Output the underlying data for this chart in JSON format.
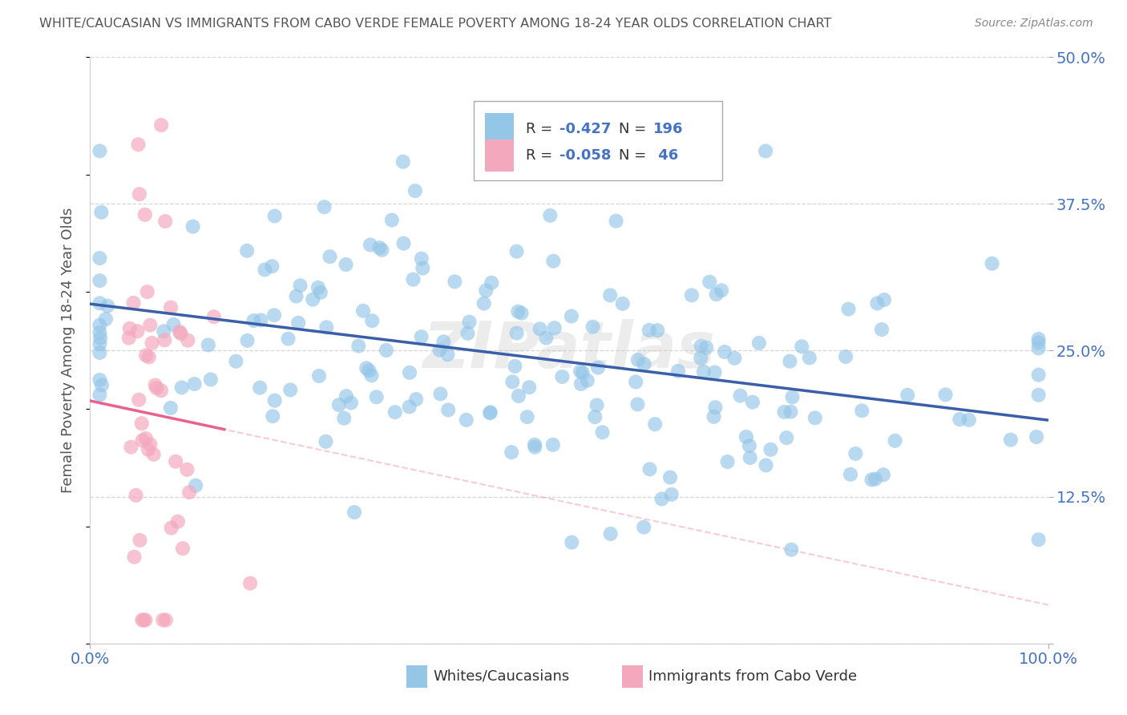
{
  "title": "WHITE/CAUCASIAN VS IMMIGRANTS FROM CABO VERDE FEMALE POVERTY AMONG 18-24 YEAR OLDS CORRELATION CHART",
  "source": "Source: ZipAtlas.com",
  "ylabel": "Female Poverty Among 18-24 Year Olds",
  "xlim": [
    0,
    1
  ],
  "ylim": [
    0,
    0.5
  ],
  "yticks": [
    0.0,
    0.125,
    0.25,
    0.375,
    0.5
  ],
  "yticklabels_right": [
    "",
    "12.5%",
    "25.0%",
    "37.5%",
    "50.0%"
  ],
  "blue_R": -0.427,
  "blue_N": 196,
  "pink_R": -0.058,
  "pink_N": 46,
  "blue_color": "#94c6e8",
  "blue_line_color": "#3a5fa8",
  "pink_color": "#f4a8be",
  "pink_line_color": "#e8638a",
  "pink_dash_color": "#f4a8be",
  "watermark": "ZIPatlas",
  "background_color": "#ffffff",
  "grid_color": "#cccccc",
  "legend_text_color": "#4472c4",
  "title_color": "#555555",
  "source_color": "#888888"
}
